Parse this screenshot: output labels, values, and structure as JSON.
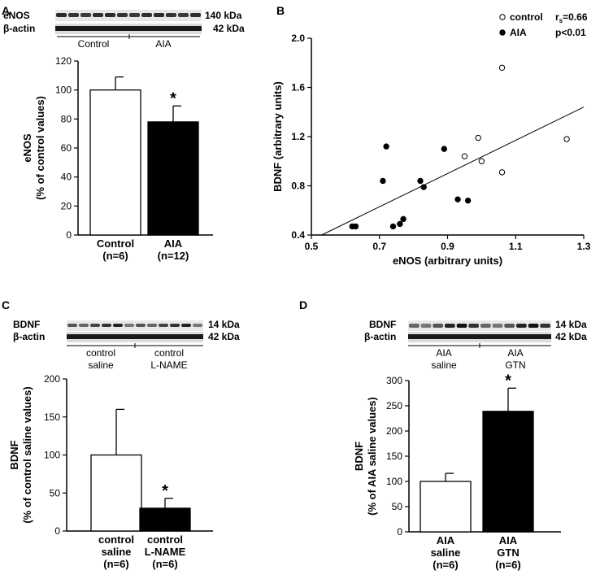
{
  "panels": [
    {
      "letter": "A"
    },
    {
      "letter": "B"
    },
    {
      "letter": "C"
    },
    {
      "letter": "D"
    }
  ],
  "blots": {
    "A": {
      "top_label": "eNOS",
      "bottom_label": "β-actin",
      "top_kda": "140 kDa",
      "bottom_kda": "42 kDa",
      "groups": [
        "Control",
        "AIA"
      ]
    },
    "C": {
      "top_label": "BDNF",
      "bottom_label": "β-actin",
      "top_kda": "14 kDa",
      "bottom_kda": "42 kDa",
      "groups": [
        [
          "control",
          "saline"
        ],
        [
          "control",
          "L-NAME"
        ]
      ]
    },
    "D": {
      "top_label": "BDNF",
      "bottom_label": "β-actin",
      "top_kda": "14 kDa",
      "bottom_kda": "42 kDa",
      "groups": [
        [
          "AIA",
          "saline"
        ],
        [
          "AIA",
          "GTN"
        ]
      ]
    }
  },
  "chart_data": [
    {
      "panel": "A",
      "type": "bar",
      "ylabel": [
        "eNOS",
        "(% of control values)"
      ],
      "ylim": [
        0,
        120
      ],
      "yticks": [
        0,
        20,
        40,
        60,
        80,
        100,
        120
      ],
      "categories": [
        [
          "Control",
          "(n=6)"
        ],
        [
          "AIA",
          "(n=12)"
        ]
      ],
      "values": [
        100,
        78
      ],
      "errors": [
        9,
        11
      ],
      "fills": [
        "#ffffff",
        "#000000"
      ],
      "significance": [
        "",
        "*"
      ]
    },
    {
      "panel": "B",
      "type": "scatter",
      "xlabel": "eNOS (arbitrary units)",
      "ylabel": "BDNF (arbitrary units)",
      "xlim": [
        0.5,
        1.3
      ],
      "ylim": [
        0.4,
        2.0
      ],
      "xticks": [
        0.5,
        0.7,
        0.9,
        1.1,
        1.3
      ],
      "yticks": [
        0.4,
        0.8,
        1.2,
        1.6,
        2.0
      ],
      "series": [
        {
          "name": "control",
          "marker": "open",
          "points": [
            [
              1.06,
              1.76
            ],
            [
              0.99,
              1.19
            ],
            [
              1.0,
              1.0
            ],
            [
              0.95,
              1.04
            ],
            [
              1.06,
              0.91
            ],
            [
              1.25,
              1.18
            ]
          ]
        },
        {
          "name": "AIA",
          "marker": "filled",
          "points": [
            [
              0.62,
              0.47
            ],
            [
              0.63,
              0.47
            ],
            [
              0.72,
              1.12
            ],
            [
              0.71,
              0.84
            ],
            [
              0.74,
              0.47
            ],
            [
              0.76,
              0.49
            ],
            [
              0.77,
              0.53
            ],
            [
              0.82,
              0.84
            ],
            [
              0.83,
              0.79
            ],
            [
              0.89,
              1.1
            ],
            [
              0.93,
              0.69
            ],
            [
              0.96,
              0.68
            ]
          ]
        }
      ],
      "regression": [
        [
          0.53,
          0.4
        ],
        [
          1.3,
          1.44
        ]
      ],
      "stats": {
        "r_main": "r",
        "r_sub": "s",
        "r_value": "=0.66",
        "p": "p<0.01"
      }
    },
    {
      "panel": "C",
      "type": "bar",
      "ylabel": [
        "BDNF",
        "(% of control saline values)"
      ],
      "ylim": [
        0,
        200
      ],
      "yticks": [
        0,
        50,
        100,
        150,
        200
      ],
      "categories": [
        [
          "control",
          "saline",
          "(n=6)"
        ],
        [
          "control",
          "L-NAME",
          "(n=6)"
        ]
      ],
      "values": [
        100,
        30
      ],
      "errors": [
        60,
        13
      ],
      "fills": [
        "#ffffff",
        "#000000"
      ],
      "significance": [
        "",
        "*"
      ]
    },
    {
      "panel": "D",
      "type": "bar",
      "ylabel": [
        "BDNF",
        "(% of AIA saline values)"
      ],
      "ylim": [
        0,
        300
      ],
      "yticks": [
        0,
        50,
        100,
        150,
        200,
        250,
        300
      ],
      "categories": [
        [
          "AIA",
          "saline",
          "(n=6)"
        ],
        [
          "AIA",
          "GTN",
          "(n=6)"
        ]
      ],
      "values": [
        100,
        239
      ],
      "errors": [
        16,
        46
      ],
      "fills": [
        "#ffffff",
        "#000000"
      ],
      "significance": [
        "",
        "*"
      ]
    }
  ]
}
